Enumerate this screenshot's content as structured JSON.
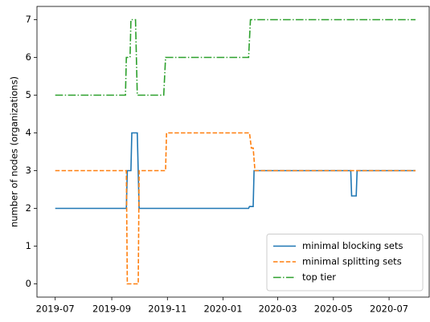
{
  "chart_data": {
    "type": "line",
    "ylabel": "number of nodes (organizations)",
    "xlim": [
      "2019-06-11",
      "2020-08-14"
    ],
    "xticks": [
      "2019-07",
      "2019-09",
      "2019-11",
      "2020-01",
      "2020-03",
      "2020-05",
      "2020-07"
    ],
    "ylim": [
      -0.35,
      7.35
    ],
    "yticks": [
      0,
      1,
      2,
      3,
      4,
      5,
      6,
      7
    ],
    "legend": "lower right",
    "series": [
      {
        "name": "minimal blocking sets",
        "color": "#1f77b4",
        "linestyle": "solid",
        "x": [
          "2019-07-01",
          "2019-09-17",
          "2019-09-18",
          "2019-09-22",
          "2019-09-23",
          "2019-09-29",
          "2019-10-01",
          "2020-01-29",
          "2020-01-30",
          "2020-02-03",
          "2020-02-04",
          "2020-05-20",
          "2020-05-21",
          "2020-05-26",
          "2020-05-27",
          "2020-07-30"
        ],
        "values": [
          2,
          2,
          3,
          3,
          4,
          4,
          2,
          2,
          2.05,
          2.05,
          3,
          3,
          2.33,
          2.33,
          3,
          3
        ]
      },
      {
        "name": "minimal splitting sets",
        "color": "#ff7f0e",
        "linestyle": "dashed",
        "x": [
          "2019-07-01",
          "2019-09-17",
          "2019-09-18",
          "2019-09-30",
          "2019-10-01",
          "2019-10-30",
          "2019-10-31",
          "2020-01-30",
          "2020-02-01",
          "2020-02-03",
          "2020-02-05",
          "2020-07-30"
        ],
        "values": [
          3,
          3,
          0,
          0,
          3,
          3,
          4,
          4,
          3.6,
          3.6,
          3,
          3
        ]
      },
      {
        "name": "top tier",
        "color": "#2ca02c",
        "linestyle": "dashdot",
        "x": [
          "2019-07-01",
          "2019-09-16",
          "2019-09-17",
          "2019-09-21",
          "2019-09-22",
          "2019-09-27",
          "2019-09-29",
          "2019-10-28",
          "2019-10-30",
          "2020-01-29",
          "2020-01-31",
          "2020-07-30"
        ],
        "values": [
          5,
          5,
          6,
          6,
          7,
          7,
          5,
          5,
          6,
          6,
          7,
          7
        ]
      }
    ]
  }
}
